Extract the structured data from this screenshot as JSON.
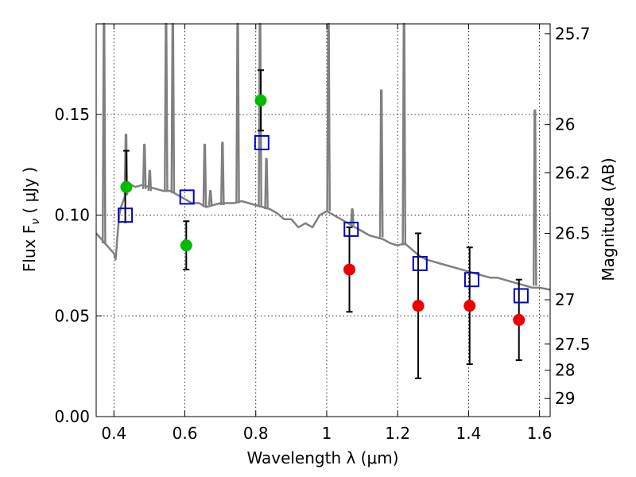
{
  "chart_data": {
    "type": "scatter",
    "xlabel": "Wavelength  λ (μm)",
    "ylabel": "Flux  F",
    "ylabel_sub": "ν",
    "ylabel_unit": " ( μJy )",
    "ylabel_right": "Magnitude (AB)",
    "xlim": [
      0.35,
      1.63
    ],
    "ylim": [
      0.0,
      0.195
    ],
    "grid": true,
    "x_ticks": [
      0.4,
      0.6,
      0.8,
      1.0,
      1.2,
      1.4,
      1.6
    ],
    "x_tick_labels": [
      "0.4",
      "0.6",
      "0.8",
      "1",
      "1.2",
      "1.4",
      "1.6"
    ],
    "y_ticks": [
      0.0,
      0.05,
      0.1,
      0.15
    ],
    "y_tick_labels": [
      "0.00",
      "0.05",
      "0.10",
      "0.15"
    ],
    "right_ticks": [
      {
        "label": "25.7",
        "flux": 0.19
      },
      {
        "label": "26",
        "flux": 0.145
      },
      {
        "label": "26.2",
        "flux": 0.121
      },
      {
        "label": "26.5",
        "flux": 0.091
      },
      {
        "label": "27",
        "flux": 0.058
      },
      {
        "label": "27.5",
        "flux": 0.036
      },
      {
        "label": "28",
        "flux": 0.023
      },
      {
        "label": "29",
        "flux": 0.009
      }
    ],
    "colors": {
      "model": "#808080",
      "model_photometry": "#0000cc",
      "observed_green": "#00bb00",
      "observed_red": "#ee0000",
      "errorbar": "#000000"
    },
    "series": [
      {
        "name": "model spectrum",
        "kind": "line",
        "x": [
          0.35,
          0.36,
          0.37,
          0.38,
          0.39,
          0.4,
          0.405,
          0.41,
          0.415,
          0.42,
          0.43,
          0.44,
          0.45,
          0.46,
          0.48,
          0.5,
          0.52,
          0.54,
          0.56,
          0.58,
          0.6,
          0.62,
          0.64,
          0.66,
          0.68,
          0.7,
          0.72,
          0.74,
          0.76,
          0.78,
          0.8,
          0.82,
          0.84,
          0.86,
          0.88,
          0.9,
          0.92,
          0.94,
          0.96,
          0.98,
          1.0,
          1.02,
          1.04,
          1.06,
          1.08,
          1.1,
          1.12,
          1.14,
          1.16,
          1.18,
          1.2,
          1.22,
          1.24,
          1.26,
          1.28,
          1.3,
          1.32,
          1.34,
          1.36,
          1.38,
          1.4,
          1.42,
          1.44,
          1.46,
          1.48,
          1.5,
          1.52,
          1.54,
          1.56,
          1.58,
          1.6,
          1.63
        ],
        "y": [
          0.091,
          0.089,
          0.087,
          0.085,
          0.083,
          0.081,
          0.078,
          0.09,
          0.1,
          0.104,
          0.109,
          0.113,
          0.115,
          0.114,
          0.115,
          0.114,
          0.113,
          0.112,
          0.112,
          0.11,
          0.108,
          0.106,
          0.106,
          0.104,
          0.105,
          0.106,
          0.106,
          0.106,
          0.107,
          0.106,
          0.105,
          0.104,
          0.103,
          0.101,
          0.098,
          0.098,
          0.094,
          0.096,
          0.094,
          0.1,
          0.102,
          0.1,
          0.098,
          0.096,
          0.094,
          0.092,
          0.09,
          0.089,
          0.088,
          0.086,
          0.085,
          0.086,
          0.083,
          0.08,
          0.078,
          0.077,
          0.076,
          0.075,
          0.074,
          0.073,
          0.072,
          0.071,
          0.07,
          0.069,
          0.069,
          0.068,
          0.067,
          0.066,
          0.065,
          0.064,
          0.064,
          0.063
        ]
      },
      {
        "name": "model emission lines",
        "kind": "spikes",
        "lines": [
          {
            "x": 0.372,
            "base": 0.086,
            "peak": 0.195
          },
          {
            "x": 0.434,
            "base": 0.11,
            "peak": 0.14
          },
          {
            "x": 0.486,
            "base": 0.113,
            "peak": 0.135
          },
          {
            "x": 0.501,
            "base": 0.112,
            "peak": 0.122
          },
          {
            "x": 0.547,
            "base": 0.112,
            "peak": 0.195
          },
          {
            "x": 0.566,
            "base": 0.111,
            "peak": 0.195
          },
          {
            "x": 0.656,
            "base": 0.104,
            "peak": 0.135
          },
          {
            "x": 0.672,
            "base": 0.105,
            "peak": 0.112
          },
          {
            "x": 0.706,
            "base": 0.105,
            "peak": 0.136
          },
          {
            "x": 0.749,
            "base": 0.106,
            "peak": 0.195
          },
          {
            "x": 0.812,
            "base": 0.104,
            "peak": 0.195
          },
          {
            "x": 0.83,
            "base": 0.103,
            "peak": 0.128
          },
          {
            "x": 1.005,
            "base": 0.102,
            "peak": 0.195
          },
          {
            "x": 1.072,
            "base": 0.095,
            "peak": 0.103
          },
          {
            "x": 1.154,
            "base": 0.089,
            "peak": 0.162
          },
          {
            "x": 1.218,
            "base": 0.085,
            "peak": 0.195
          },
          {
            "x": 1.587,
            "base": 0.065,
            "peak": 0.152
          }
        ]
      },
      {
        "name": "model photometry",
        "kind": "open-square",
        "x": [
          0.432,
          0.606,
          0.817,
          1.069,
          1.263,
          1.409,
          1.548
        ],
        "y": [
          0.1,
          0.109,
          0.136,
          0.093,
          0.076,
          0.068,
          0.06
        ]
      },
      {
        "name": "observed flux (green)",
        "kind": "filled-circle",
        "x": [
          0.435,
          0.604,
          0.814
        ],
        "y": [
          0.114,
          0.085,
          0.157
        ],
        "yerr_low": [
          0.114,
          0.073,
          0.142
        ],
        "yerr_high": [
          0.132,
          0.097,
          0.172
        ]
      },
      {
        "name": "observed flux (red)",
        "kind": "filled-circle",
        "x": [
          1.064,
          1.258,
          1.403,
          1.542
        ],
        "y": [
          0.073,
          0.055,
          0.055,
          0.048
        ],
        "yerr_low": [
          0.052,
          0.019,
          0.026,
          0.028
        ],
        "yerr_high": [
          0.094,
          0.091,
          0.084,
          0.068
        ]
      },
      {
        "name": "error bar (model point at 0.43)",
        "kind": "errorbar-only",
        "x": [
          0.432
        ],
        "yerr_low": [
          0.096
        ],
        "yerr_high": [
          0.114
        ]
      }
    ]
  }
}
